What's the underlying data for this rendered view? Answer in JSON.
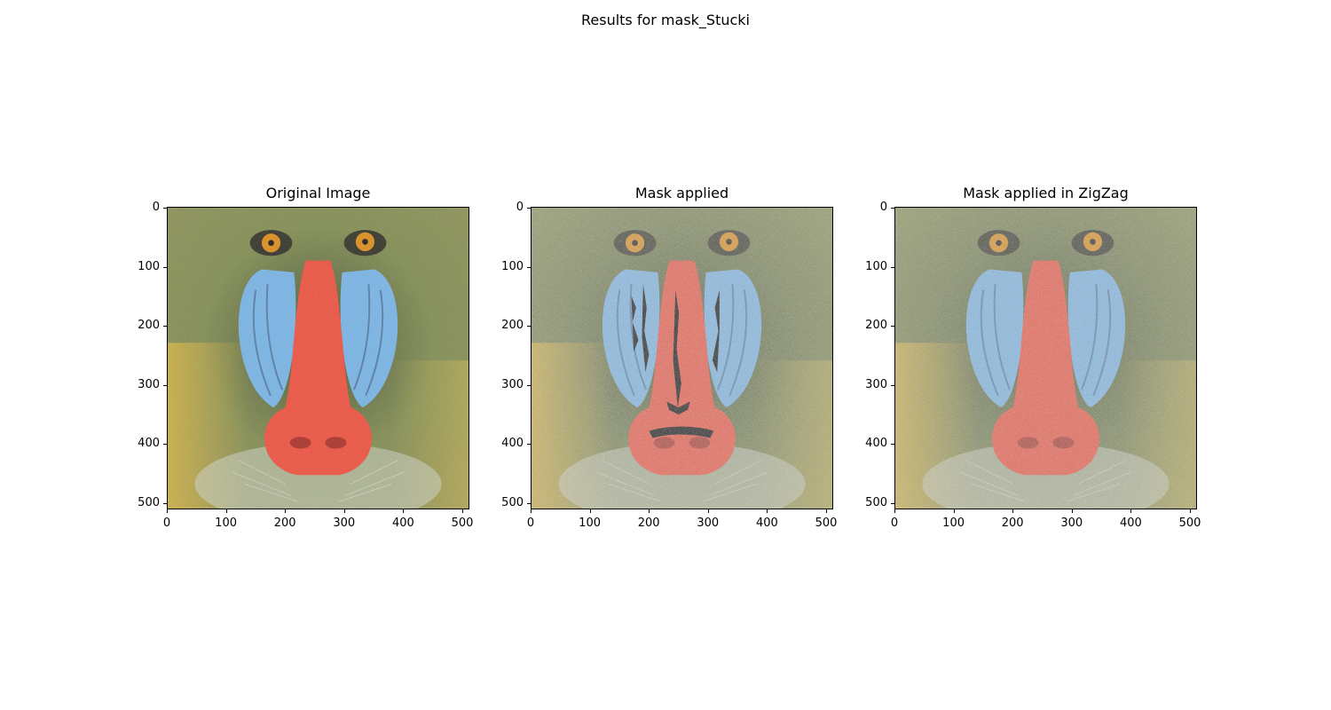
{
  "figure": {
    "suptitle": "Results for mask_Stucki",
    "panels": [
      {
        "title": "Original Image",
        "variant": "original"
      },
      {
        "title": "Mask applied",
        "variant": "mask"
      },
      {
        "title": "Mask applied in ZigZag",
        "variant": "zigzag"
      }
    ],
    "axes": {
      "xticks": [
        "0",
        "100",
        "200",
        "300",
        "400",
        "500"
      ],
      "yticks": [
        "0",
        "100",
        "200",
        "300",
        "400",
        "500"
      ]
    }
  },
  "colors": {
    "fur_green": "#7d8a4a",
    "fur_dark": "#3f4a2c",
    "cheek_blue": "#74b4ea",
    "nose_red": "#f24a36",
    "eye_orange": "#e08a10",
    "fur_yellow": "#d9b33a"
  }
}
